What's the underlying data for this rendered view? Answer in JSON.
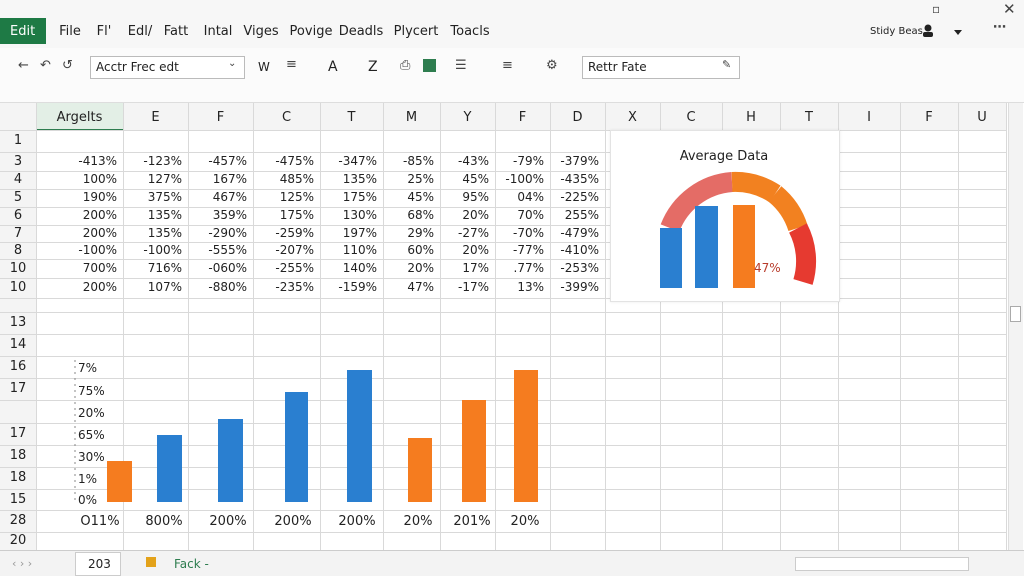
{
  "ribbon": {
    "active_tab": "Edit",
    "tabs": [
      "File",
      "Fl'",
      "Edl/",
      "Fatt",
      "Intal",
      "Viges",
      "Povige",
      "Deadls",
      "Plycert",
      "Toacls"
    ],
    "account": "Stidy Beas"
  },
  "toolbar": {
    "font_box": "Acctr Frec edt",
    "bold": "W",
    "font_color": "A",
    "sort": "Z",
    "formula_box": "Rettr Fate"
  },
  "sheet": {
    "columns": [
      "Argelts",
      "E",
      "F",
      "C",
      "T",
      "M",
      "Y",
      "F",
      "D",
      "X",
      "C",
      "H",
      "T",
      "I",
      "F",
      "U"
    ],
    "rows": [
      {
        "label": "1",
        "cells": []
      },
      {
        "label": "3",
        "cells": [
          "-413%",
          "-123%",
          "-457%",
          "-475%",
          "-347%",
          "-85%",
          "-43%",
          "-79%",
          "-379%"
        ]
      },
      {
        "label": "4",
        "cells": [
          "100%",
          "127%",
          "167%",
          "485%",
          "135%",
          "25%",
          "45%",
          "-100%",
          "-435%"
        ]
      },
      {
        "label": "5",
        "cells": [
          "190%",
          "375%",
          "467%",
          "125%",
          "175%",
          "45%",
          "95%",
          "04%",
          "-225%"
        ]
      },
      {
        "label": "6",
        "cells": [
          "200%",
          "135%",
          "359%",
          "175%",
          "130%",
          "68%",
          "20%",
          "70%",
          "255%"
        ]
      },
      {
        "label": "7",
        "cells": [
          "200%",
          "135%",
          "-290%",
          "-259%",
          "197%",
          "29%",
          "-27%",
          "-70%",
          "-479%"
        ]
      },
      {
        "label": "8",
        "cells": [
          "-100%",
          "-100%",
          "-555%",
          "-207%",
          "110%",
          "60%",
          "20%",
          "-77%",
          "-410%"
        ]
      },
      {
        "label": "10",
        "cells": [
          "700%",
          "716%",
          "-060%",
          "-255%",
          "140%",
          "20%",
          "17%",
          ".77%",
          "-253%"
        ]
      },
      {
        "label": "10",
        "cells": [
          "200%",
          "107%",
          "-880%",
          "-235%",
          "-159%",
          "47%",
          "-17%",
          "13%",
          "-399%"
        ]
      },
      {
        "label": "13",
        "cells": []
      },
      {
        "label": "14",
        "cells": []
      },
      {
        "label": "16",
        "cells": []
      },
      {
        "label": "17",
        "cells": []
      },
      {
        "label": "17",
        "cells": []
      },
      {
        "label": "18",
        "cells": []
      },
      {
        "label": "18",
        "cells": []
      },
      {
        "label": "15",
        "cells": []
      },
      {
        "label": "28",
        "cells": []
      },
      {
        "label": "20",
        "cells": []
      }
    ]
  },
  "gauge_chart": {
    "title": "Average Data",
    "label": "47%"
  },
  "bar_chart": {
    "y_labels": [
      "7%",
      "75%",
      "20%",
      "65%",
      "30%",
      "1%",
      "0%"
    ],
    "x_labels": [
      "O11%",
      "800%",
      "200%",
      "200%",
      "200%",
      "20%",
      "201%",
      "20%"
    ]
  },
  "sheet_tabs": [
    "203",
    "Fack -"
  ]
}
